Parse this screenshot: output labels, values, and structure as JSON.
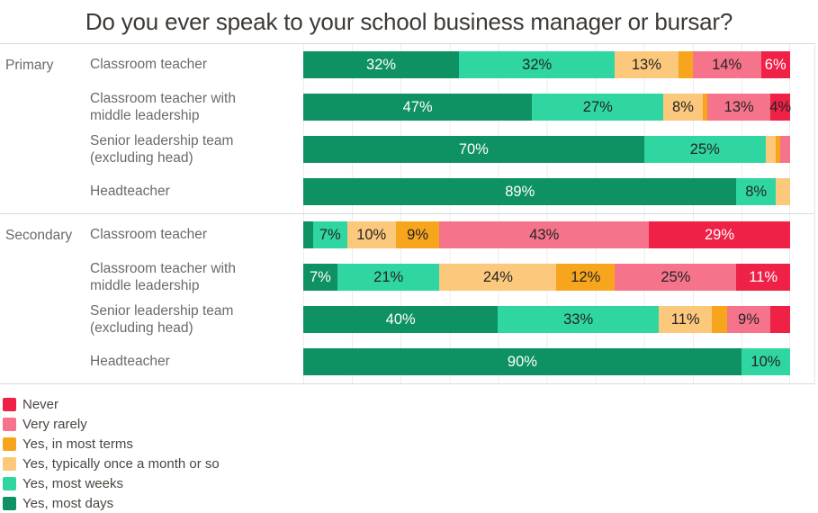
{
  "title": "Do you ever speak to your school business manager or bursar?",
  "legend": [
    {
      "label": "Never",
      "color": "#ef2147"
    },
    {
      "label": "Very rarely",
      "color": "#f5738b"
    },
    {
      "label": "Yes, in most terms",
      "color": "#f8a51e"
    },
    {
      "label": "Yes, typically once a month or so",
      "color": "#fbc87c"
    },
    {
      "label": "Yes, most weeks",
      "color": "#2fd6a1"
    },
    {
      "label": "Yes, most days",
      "color": "#0e9163"
    }
  ],
  "chart_data": {
    "type": "bar",
    "orientation": "horizontal",
    "stacked": true,
    "unit": "%",
    "xlim": [
      0,
      100
    ],
    "gridline_step_percent": 10,
    "title": "Do you ever speak to your school business manager or bursar?",
    "series_order": [
      "Yes, most days",
      "Yes, most weeks",
      "Yes, typically once a month or so",
      "Yes, in most terms",
      "Very rarely",
      "Never"
    ],
    "segments": [
      {
        "key": "yes-most-days",
        "name": "Yes, most days",
        "color": "#0e9163",
        "label_color": "#ffffff"
      },
      {
        "key": "yes-most-weeks",
        "name": "Yes, most weeks",
        "color": "#2fd6a1",
        "label_color": "#242424"
      },
      {
        "key": "yes-monthly",
        "name": "Yes, typically once a month or so",
        "color": "#fbc87c",
        "label_color": "#242424"
      },
      {
        "key": "yes-most-terms",
        "name": "Yes, in most terms",
        "color": "#f8a51e",
        "label_color": "#242424"
      },
      {
        "key": "very-rarely",
        "name": "Very rarely",
        "color": "#f5738b",
        "label_color": "#242424"
      },
      {
        "key": "never",
        "name": "Never",
        "color": "#ef2147",
        "label_color": "#ffffff"
      }
    ],
    "groups": [
      {
        "name": "Primary",
        "rows": [
          {
            "label": "Classroom teacher",
            "values": [
              32,
              32,
              13,
              3,
              14,
              6
            ],
            "labels": [
              "32%",
              "32%",
              "13%",
              "",
              "14%",
              "6%"
            ]
          },
          {
            "label": "Classroom teacher with middle leadership",
            "values": [
              47,
              27,
              8,
              1,
              13,
              4
            ],
            "labels": [
              "47%",
              "27%",
              "8%",
              "",
              "13%",
              "4%"
            ],
            "label_colors": [
              null,
              null,
              null,
              null,
              null,
              "#242424"
            ]
          },
          {
            "label": "Senior leadership team (excluding head)",
            "values": [
              70,
              25,
              2,
              1,
              2,
              0
            ],
            "labels": [
              "70%",
              "25%",
              "",
              "",
              "",
              ""
            ]
          },
          {
            "label": "Headteacher",
            "values": [
              89,
              8,
              3,
              0,
              0,
              0
            ],
            "labels": [
              "89%",
              "8%",
              "",
              "",
              "",
              ""
            ]
          }
        ]
      },
      {
        "name": "Secondary",
        "rows": [
          {
            "label": "Classroom teacher",
            "values": [
              2,
              7,
              10,
              9,
              43,
              29
            ],
            "labels": [
              "",
              "7%",
              "10%",
              "9%",
              "43%",
              "29%"
            ]
          },
          {
            "label": "Classroom teacher with middle leadership",
            "values": [
              7,
              21,
              24,
              12,
              25,
              11
            ],
            "labels": [
              "7%",
              "21%",
              "24%",
              "12%",
              "25%",
              "11%"
            ]
          },
          {
            "label": "Senior leadership team (excluding head)",
            "values": [
              40,
              33,
              11,
              3,
              9,
              4
            ],
            "labels": [
              "40%",
              "33%",
              "11%",
              "",
              "9%",
              ""
            ]
          },
          {
            "label": "Headteacher",
            "values": [
              90,
              10,
              0,
              0,
              0,
              0
            ],
            "labels": [
              "90%",
              "10%",
              "",
              "",
              "",
              ""
            ]
          }
        ]
      }
    ]
  }
}
